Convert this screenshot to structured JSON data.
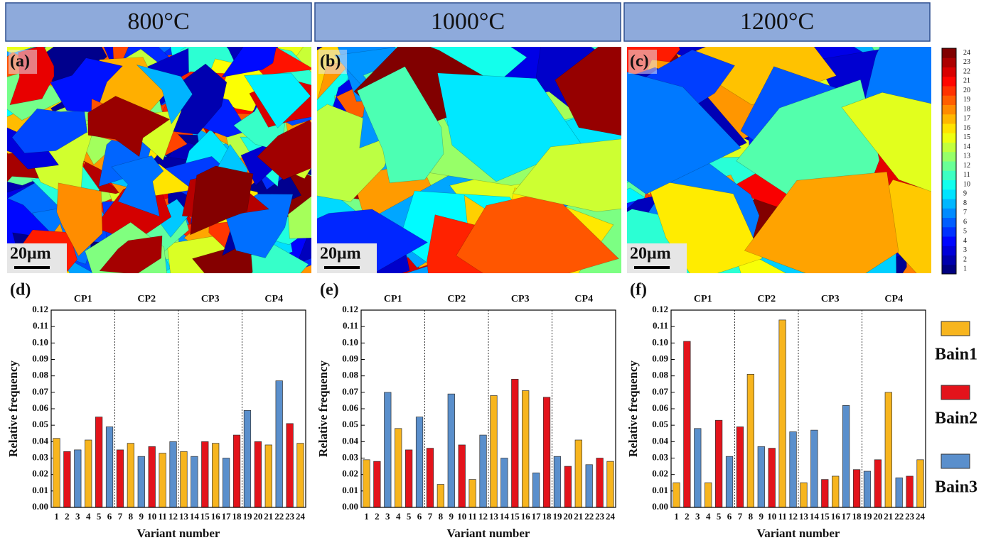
{
  "headers": [
    "800°C",
    "1000°C",
    "1200°C"
  ],
  "maps": [
    {
      "label": "(a)",
      "scale": "20μm"
    },
    {
      "label": "(b)",
      "scale": "20μm"
    },
    {
      "label": "(c)",
      "scale": "20μm"
    }
  ],
  "colorbar": {
    "ticks": [
      1,
      2,
      3,
      4,
      5,
      6,
      7,
      8,
      9,
      10,
      11,
      12,
      13,
      14,
      15,
      16,
      17,
      18,
      19,
      20,
      21,
      22,
      23,
      24
    ]
  },
  "legend": [
    {
      "name": "Bain1",
      "color": "#f7b51e"
    },
    {
      "name": "Bain2",
      "color": "#e3131b"
    },
    {
      "name": "Bain3",
      "color": "#5a8fcc"
    }
  ],
  "chart_data": [
    {
      "type": "bar",
      "label": "(d)",
      "y_label": "Relative frequency",
      "x_label": "Variant number",
      "groups": [
        "CP1",
        "CP2",
        "CP3",
        "CP4"
      ],
      "categories": [
        "1",
        "2",
        "3",
        "4",
        "5",
        "6",
        "7",
        "8",
        "9",
        "10",
        "11",
        "12",
        "13",
        "14",
        "15",
        "16",
        "17",
        "18",
        "19",
        "20",
        "21",
        "22",
        "23",
        "24"
      ],
      "series": [
        {
          "values": [
            0.042,
            null,
            null,
            0.041,
            null,
            null,
            null,
            0.039,
            null,
            null,
            0.033,
            null,
            0.034,
            null,
            null,
            0.039,
            null,
            null,
            null,
            null,
            0.038,
            null,
            null,
            0.039
          ]
        },
        {
          "values": [
            null,
            0.034,
            null,
            null,
            0.055,
            null,
            0.035,
            null,
            null,
            0.037,
            null,
            null,
            null,
            null,
            0.04,
            null,
            null,
            0.044,
            null,
            0.04,
            null,
            null,
            0.051,
            null
          ]
        },
        {
          "values": [
            null,
            null,
            0.035,
            null,
            null,
            0.049,
            null,
            null,
            0.031,
            null,
            null,
            0.04,
            null,
            0.031,
            null,
            null,
            0.03,
            null,
            0.059,
            null,
            null,
            0.077,
            null,
            null
          ]
        }
      ],
      "ylim": [
        0,
        0.12
      ],
      "yticks": [
        {
          "value": 0,
          "label": "0.00"
        },
        {
          "value": 0.01,
          "label": "0.01"
        },
        {
          "value": 0.02,
          "label": "0.02"
        },
        {
          "value": 0.03,
          "label": "0.03"
        },
        {
          "value": 0.04,
          "label": "0.04"
        },
        {
          "value": 0.05,
          "label": "0.05"
        },
        {
          "value": 0.06,
          "label": "0.06"
        },
        {
          "value": 0.07,
          "label": "0.07"
        },
        {
          "value": 0.08,
          "label": "0.08"
        },
        {
          "value": 0.09,
          "label": "0.09"
        },
        {
          "value": 0.1,
          "label": "0.10"
        },
        {
          "value": 0.11,
          "label": "0.11"
        },
        {
          "value": 0.12,
          "label": "0.12"
        }
      ]
    },
    {
      "type": "bar",
      "label": "(e)",
      "y_label": "Relative frequency",
      "x_label": "Variant number",
      "groups": [
        "CP1",
        "CP2",
        "CP3",
        "CP4"
      ],
      "categories": [
        "1",
        "2",
        "3",
        "4",
        "5",
        "6",
        "7",
        "8",
        "9",
        "10",
        "11",
        "12",
        "13",
        "14",
        "15",
        "16",
        "17",
        "18",
        "19",
        "20",
        "21",
        "22",
        "23",
        "24"
      ],
      "series": [
        {
          "values": [
            0.029,
            null,
            null,
            0.048,
            null,
            null,
            null,
            0.014,
            null,
            null,
            0.017,
            null,
            0.068,
            null,
            null,
            0.071,
            null,
            null,
            null,
            null,
            0.041,
            null,
            null,
            0.028
          ]
        },
        {
          "values": [
            null,
            0.028,
            null,
            null,
            0.035,
            null,
            0.036,
            null,
            null,
            0.038,
            null,
            null,
            null,
            null,
            0.078,
            null,
            null,
            0.067,
            null,
            0.025,
            null,
            null,
            0.03,
            null
          ]
        },
        {
          "values": [
            null,
            null,
            0.07,
            null,
            null,
            0.055,
            null,
            null,
            0.069,
            null,
            null,
            0.044,
            null,
            0.03,
            null,
            null,
            0.021,
            null,
            0.031,
            null,
            null,
            0.026,
            null,
            null
          ]
        }
      ],
      "ylim": [
        0,
        0.12
      ],
      "yticks": [
        {
          "value": 0,
          "label": "0.00"
        },
        {
          "value": 0.01,
          "label": "0.01"
        },
        {
          "value": 0.02,
          "label": "0.02"
        },
        {
          "value": 0.03,
          "label": "0.03"
        },
        {
          "value": 0.04,
          "label": "0.04"
        },
        {
          "value": 0.05,
          "label": "0.05"
        },
        {
          "value": 0.06,
          "label": "0.06"
        },
        {
          "value": 0.07,
          "label": "0.07"
        },
        {
          "value": 0.08,
          "label": "0.08"
        },
        {
          "value": 0.09,
          "label": "0.09"
        },
        {
          "value": 0.1,
          "label": "0.10"
        },
        {
          "value": 0.11,
          "label": "0.11"
        },
        {
          "value": 0.12,
          "label": "0.12"
        }
      ]
    },
    {
      "type": "bar",
      "label": "(f)",
      "y_label": "Relative frequency",
      "x_label": "Variant number",
      "groups": [
        "CP1",
        "CP2",
        "CP3",
        "CP4"
      ],
      "categories": [
        "1",
        "2",
        "3",
        "4",
        "5",
        "6",
        "7",
        "8",
        "9",
        "10",
        "11",
        "12",
        "13",
        "14",
        "15",
        "16",
        "17",
        "18",
        "19",
        "20",
        "21",
        "22",
        "23",
        "24"
      ],
      "series": [
        {
          "values": [
            0.015,
            null,
            null,
            0.015,
            null,
            null,
            null,
            0.081,
            null,
            null,
            0.114,
            null,
            0.015,
            null,
            null,
            0.019,
            null,
            null,
            null,
            null,
            0.07,
            null,
            null,
            0.029
          ]
        },
        {
          "values": [
            null,
            0.101,
            null,
            null,
            0.053,
            null,
            0.049,
            null,
            null,
            0.036,
            null,
            null,
            null,
            null,
            0.017,
            null,
            null,
            0.023,
            null,
            0.029,
            null,
            null,
            0.019,
            null
          ]
        },
        {
          "values": [
            null,
            null,
            0.048,
            null,
            null,
            0.031,
            null,
            null,
            0.037,
            null,
            null,
            0.046,
            null,
            0.047,
            null,
            null,
            0.062,
            null,
            0.022,
            null,
            null,
            0.018,
            null,
            null
          ]
        }
      ],
      "ylim": [
        0,
        0.12
      ],
      "yticks": [
        {
          "value": 0,
          "label": "0.00"
        },
        {
          "value": 0.01,
          "label": "0.01"
        },
        {
          "value": 0.02,
          "label": "0.02"
        },
        {
          "value": 0.03,
          "label": "0.03"
        },
        {
          "value": 0.04,
          "label": "0.04"
        },
        {
          "value": 0.05,
          "label": "0.05"
        },
        {
          "value": 0.06,
          "label": "0.06"
        },
        {
          "value": 0.07,
          "label": "0.07"
        },
        {
          "value": 0.08,
          "label": "0.08"
        },
        {
          "value": 0.09,
          "label": "0.09"
        },
        {
          "value": 0.1,
          "label": "0.10"
        },
        {
          "value": 0.11,
          "label": "0.11"
        },
        {
          "value": 0.12,
          "label": "0.12"
        }
      ]
    }
  ]
}
